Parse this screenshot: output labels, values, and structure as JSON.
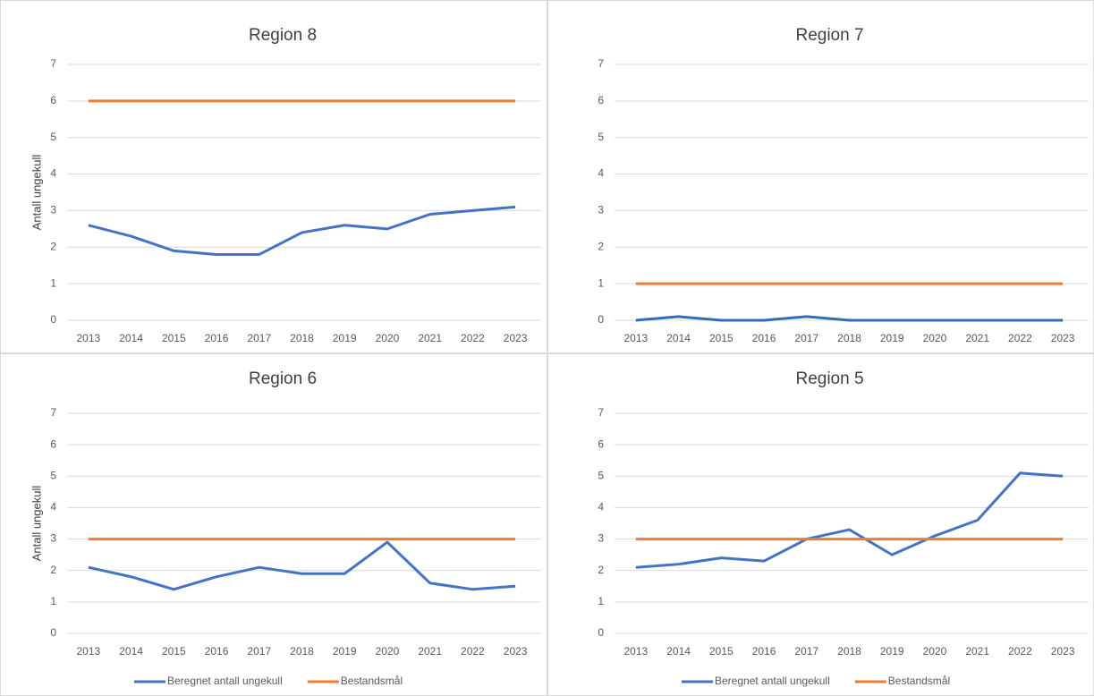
{
  "chart_data": [
    {
      "type": "line",
      "title": "Region 8",
      "y_label": "Antall ungekull",
      "categories": [
        "2013",
        "2014",
        "2015",
        "2016",
        "2017",
        "2018",
        "2019",
        "2020",
        "2021",
        "2022",
        "2023"
      ],
      "series": [
        {
          "color": "#4472c4",
          "values": [
            2.6,
            2.3,
            1.9,
            1.8,
            1.8,
            2.4,
            2.6,
            2.5,
            2.9,
            3.0,
            3.1
          ]
        },
        {
          "color": "#ed7d31",
          "values": [
            6,
            6,
            6,
            6,
            6,
            6,
            6,
            6,
            6,
            6,
            6
          ]
        }
      ],
      "ylim": [
        0,
        7
      ],
      "yticks": [
        0,
        1,
        2,
        3,
        4,
        5,
        6,
        7
      ],
      "grid": true,
      "legend": false
    },
    {
      "type": "line",
      "title": "Region 7",
      "categories": [
        "2013",
        "2014",
        "2015",
        "2016",
        "2017",
        "2018",
        "2019",
        "2020",
        "2021",
        "2022",
        "2023"
      ],
      "series": [
        {
          "color": "#2f6fb8",
          "values": [
            0,
            0.1,
            0,
            0,
            0.1,
            0,
            0,
            0,
            0,
            0,
            0
          ]
        },
        {
          "color": "#ed7d31",
          "values": [
            1,
            1,
            1,
            1,
            1,
            1,
            1,
            1,
            1,
            1,
            1
          ]
        }
      ],
      "ylim": [
        0,
        7
      ],
      "yticks": [
        0,
        1,
        2,
        3,
        4,
        5,
        6,
        7
      ],
      "grid": true,
      "legend": false
    },
    {
      "type": "line",
      "title": "Region 6",
      "y_label": "Antall ungekull",
      "categories": [
        "2013",
        "2014",
        "2015",
        "2016",
        "2017",
        "2018",
        "2019",
        "2020",
        "2021",
        "2022",
        "2023"
      ],
      "series": [
        {
          "name": "Beregnet antall ungekull",
          "color": "#4472c4",
          "values": [
            2.1,
            1.8,
            1.4,
            1.8,
            2.1,
            1.9,
            1.9,
            2.9,
            1.6,
            1.4,
            1.5
          ]
        },
        {
          "name": "Bestandsmål",
          "color": "#ed7d31",
          "values": [
            3,
            3,
            3,
            3,
            3,
            3,
            3,
            3,
            3,
            3,
            3
          ]
        }
      ],
      "ylim": [
        0,
        7
      ],
      "yticks": [
        0,
        1,
        2,
        3,
        4,
        5,
        6,
        7
      ],
      "grid": true,
      "legend": true
    },
    {
      "type": "line",
      "title": "Region 5",
      "categories": [
        "2013",
        "2014",
        "2015",
        "2016",
        "2017",
        "2018",
        "2019",
        "2020",
        "2021",
        "2022",
        "2023"
      ],
      "series": [
        {
          "name": "Beregnet antall ungekull",
          "color": "#4472c4",
          "values": [
            2.1,
            2.2,
            2.4,
            2.3,
            3.0,
            3.3,
            2.5,
            3.1,
            3.6,
            5.1,
            5.0
          ]
        },
        {
          "name": "Bestandsmål",
          "color": "#ed7d31",
          "values": [
            3,
            3,
            3,
            3,
            3,
            3,
            3,
            3,
            3,
            3,
            3
          ]
        }
      ],
      "ylim": [
        0,
        7
      ],
      "yticks": [
        0,
        1,
        2,
        3,
        4,
        5,
        6,
        7
      ],
      "grid": true,
      "legend": true
    }
  ]
}
